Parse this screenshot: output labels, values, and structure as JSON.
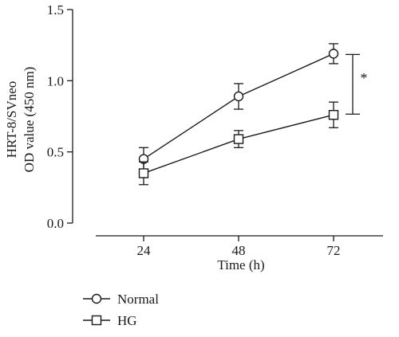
{
  "chart_data": {
    "type": "line",
    "title": "",
    "xlabel": "Time (h)",
    "ylabel_lines": [
      "HRT-8/SVneo",
      "OD value (450 nm)"
    ],
    "x": [
      24,
      48,
      72
    ],
    "x_tick_labels": [
      "24",
      "48",
      "72"
    ],
    "ylim": [
      0.0,
      1.5
    ],
    "y_ticks": [
      0.0,
      0.5,
      1.0,
      1.5
    ],
    "y_tick_labels": [
      "0.0",
      "0.5",
      "1.0",
      "1.5"
    ],
    "grid": false,
    "legend_position": "bottom-left",
    "series": [
      {
        "name": "Normal",
        "marker": "circle",
        "values": [
          0.45,
          0.89,
          1.19
        ],
        "errors": [
          0.08,
          0.09,
          0.07
        ]
      },
      {
        "name": "HG",
        "marker": "square",
        "values": [
          0.35,
          0.59,
          0.76
        ],
        "errors": [
          0.08,
          0.06,
          0.09
        ]
      }
    ],
    "annotations": [
      {
        "text": "*",
        "type": "significance-bracket",
        "x": 72,
        "y_from": 0.76,
        "y_to": 1.19
      }
    ]
  }
}
